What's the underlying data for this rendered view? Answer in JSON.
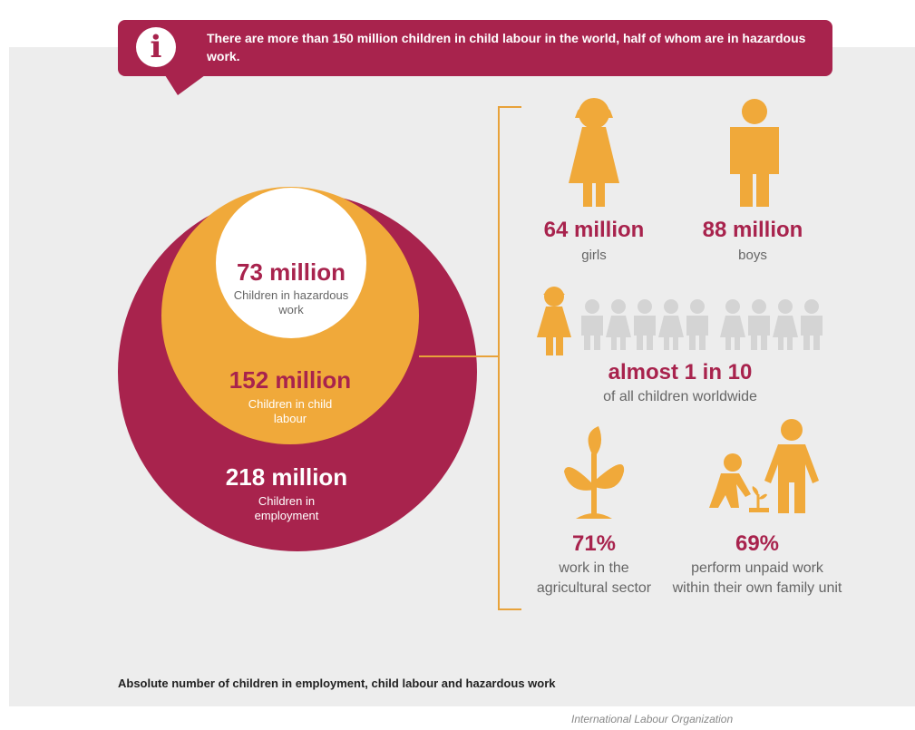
{
  "banner": {
    "text": "There are more than 150 million children in child labour in the world, half of whom are in hazardous work.",
    "icon": "info-icon"
  },
  "circles": {
    "outer": {
      "value": "218 million",
      "label": "Children in employment",
      "color": "#a8234d",
      "count_millions": 218
    },
    "middle": {
      "value": "152 million",
      "label": "Children in child labour",
      "color": "#f0a93a",
      "count_millions": 152
    },
    "inner": {
      "value": "73 million",
      "label": "Children in hazardous work",
      "color": "#ffffff",
      "count_millions": 73
    }
  },
  "gender": {
    "girls": {
      "value": "64 million",
      "label": "girls",
      "icon": "girl-icon"
    },
    "boys": {
      "value": "88 million",
      "label": "boys",
      "icon": "boy-icon"
    }
  },
  "ratio": {
    "value": "almost 1 in 10",
    "label": "of all children worldwide",
    "highlighted": 1,
    "total": 10
  },
  "sectors": {
    "agriculture": {
      "value": "71%",
      "label": "work in the agricultural sector",
      "icon": "plant-icon"
    },
    "family": {
      "value": "69%",
      "label": "perform unpaid work within their own family unit",
      "icon": "family-work-icon"
    }
  },
  "caption": "Absolute number of children in employment, child labour and hazardous work",
  "source": "International Labour Organization",
  "colors": {
    "accent": "#a8234d",
    "orange": "#f0a93a",
    "gray_figure": "#d4d4d4",
    "panel": "#ededed"
  }
}
